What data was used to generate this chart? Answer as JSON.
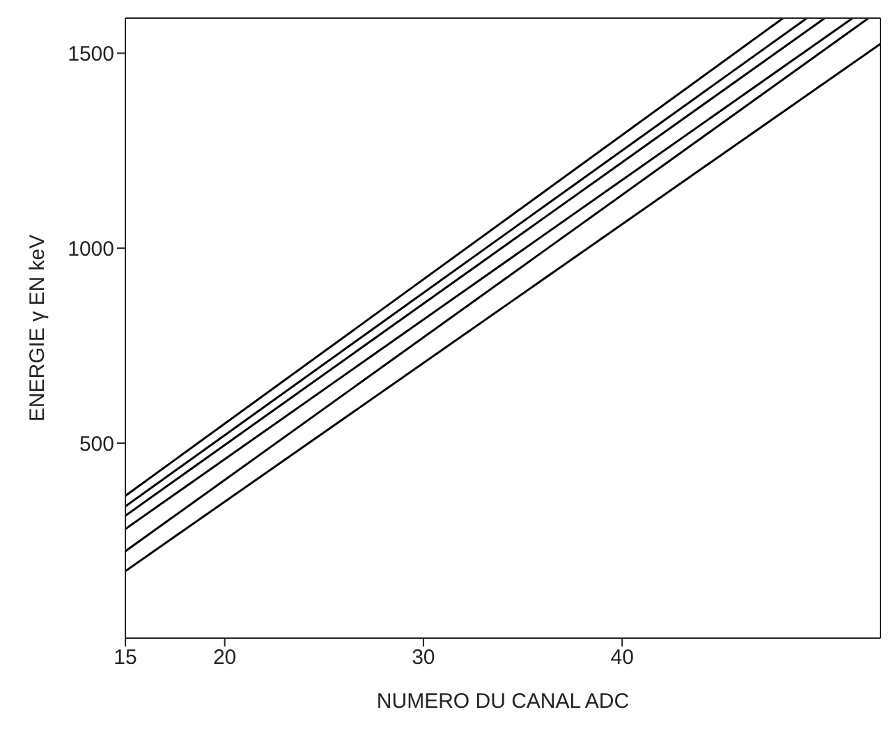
{
  "chart_data": {
    "type": "line",
    "xlabel": "NUMERO DU CANAL ADC",
    "ylabel": "ENERGIE γ EN keV",
    "xlim": [
      15,
      53
    ],
    "ylim": [
      0,
      1590
    ],
    "xticks": [
      15,
      20,
      30,
      40
    ],
    "yticks": [
      500,
      1000,
      1500
    ],
    "legend": false,
    "marker": "none",
    "line_style": "solid",
    "series": [
      {
        "color": "#000000",
        "x": [
          15,
          48.1
        ],
        "values": [
          365,
          1590
        ]
      },
      {
        "color": "#000000",
        "x": [
          15,
          49.3
        ],
        "values": [
          338,
          1590
        ]
      },
      {
        "color": "#000000",
        "x": [
          15,
          50.2
        ],
        "values": [
          314,
          1590
        ]
      },
      {
        "color": "#000000",
        "x": [
          15,
          51.6
        ],
        "values": [
          280,
          1590
        ]
      },
      {
        "color": "#000000",
        "x": [
          15,
          52.4
        ],
        "values": [
          223,
          1590
        ]
      },
      {
        "color": "#000000",
        "x": [
          15,
          53
        ],
        "values": [
          172,
          1524
        ]
      }
    ]
  }
}
